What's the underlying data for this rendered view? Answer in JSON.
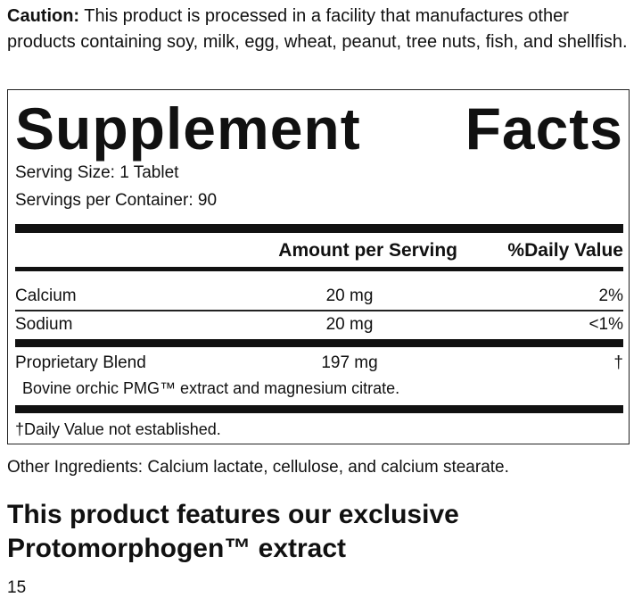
{
  "caution": {
    "label": "Caution:",
    "text": "This product is processed in a facility that manufactures other products containing soy, milk, egg, wheat, peanut, tree nuts, fish, and shellfish."
  },
  "facts": {
    "title": "Supplement Facts",
    "serving_size": "Serving Size: 1 Tablet",
    "servings_per_container": "Servings per Container: 90",
    "header": {
      "amount": "Amount per Serving",
      "daily_value": "%Daily Value"
    },
    "rows": [
      {
        "name": "Calcium",
        "amount": "20 mg",
        "daily_value": "2%"
      },
      {
        "name": "Sodium",
        "amount": "20 mg",
        "daily_value": "<1%"
      },
      {
        "name": "Proprietary Blend",
        "amount": "197 mg",
        "daily_value": "†",
        "detail": "Bovine orchic PMG™ extract and magnesium citrate."
      }
    ],
    "footnote": "†Daily Value not established."
  },
  "other_ingredients": "Other Ingredients: Calcium lactate, cellulose, and calcium stearate.",
  "feature_heading": "This product features our exclusive Protomorphogen™ extract",
  "page_number": "15"
}
